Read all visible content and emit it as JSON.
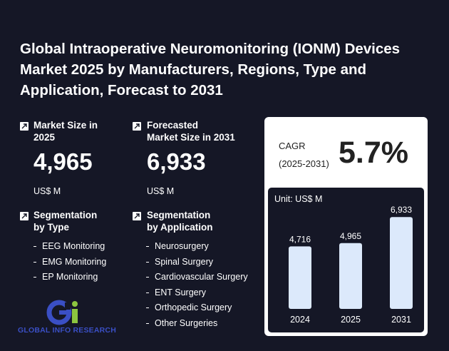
{
  "title": "Global Intraoperative Neuromonitoring (IONM) Devices Market 2025 by Manufacturers, Regions, Type and Application, Forecast to 2031",
  "market_size": {
    "label_line1": "Market Size in",
    "label_line2": "2025",
    "value": "4,965",
    "unit": "US$ M"
  },
  "forecast": {
    "label_line1": "Forecasted",
    "label_line2": "Market Size in 2031",
    "value": "6,933",
    "unit": "US$ M"
  },
  "seg_type": {
    "label_line1": "Segmentation",
    "label_line2": "by Type",
    "items": [
      "EEG Monitoring",
      "EMG Monitoring",
      "EP Monitoring"
    ]
  },
  "seg_app": {
    "label_line1": "Segmentation",
    "label_line2": "by Application",
    "items": [
      "Neurosurgery",
      "Spinal Surgery",
      "Cardiovascular Surgery",
      "ENT Surgery",
      "Orthopedic Surgery",
      "Other Surgeries"
    ]
  },
  "cagr": {
    "label_line1": "CAGR",
    "label_line2": "(2025-2031)",
    "value": "5.7%"
  },
  "logo": {
    "text": "GLOBAL INFO RESEARCH"
  },
  "colors": {
    "background": "#151726",
    "bar": "#dce9fb",
    "logo_blue": "#3a4fc4",
    "logo_green": "#8cc63f"
  },
  "chart_data": {
    "type": "bar",
    "unit_label": "Unit: US$ M",
    "categories": [
      "2024",
      "2025",
      "2031"
    ],
    "values": [
      4716,
      4965,
      6933
    ],
    "value_labels": [
      "4,716",
      "4,965",
      "6,933"
    ],
    "ylim": [
      0,
      7000
    ]
  }
}
